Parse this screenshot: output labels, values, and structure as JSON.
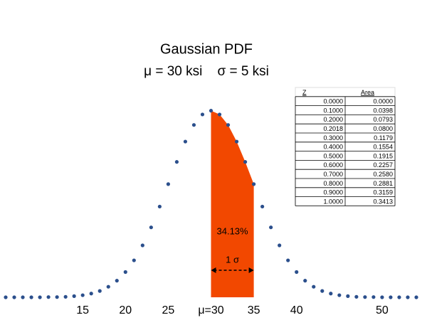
{
  "chart_data": {
    "type": "scatter",
    "title": "Gaussian PDF",
    "subtitle": "μ = 30 ksi    σ = 5 ksi",
    "x": [
      6,
      7,
      8,
      9,
      10,
      11,
      12,
      13,
      14,
      15,
      16,
      17,
      18,
      19,
      20,
      21,
      22,
      23,
      24,
      25,
      26,
      27,
      28,
      29,
      30,
      31,
      32,
      33,
      34,
      35,
      36,
      37,
      38,
      39,
      40,
      41,
      42,
      43,
      44,
      45,
      46,
      47,
      48,
      49,
      50,
      51,
      52,
      53,
      54
    ],
    "values": [
      0,
      0,
      0,
      0,
      0,
      0.0001,
      0.0001,
      0.0002,
      0.0005,
      0.0009,
      0.0016,
      0.0027,
      0.0045,
      0.0071,
      0.0108,
      0.0158,
      0.0222,
      0.0299,
      0.0388,
      0.0484,
      0.0579,
      0.0666,
      0.0737,
      0.0782,
      0.0798,
      0.0782,
      0.0737,
      0.0666,
      0.0579,
      0.0484,
      0.0388,
      0.0299,
      0.0222,
      0.0158,
      0.0108,
      0.0071,
      0.0045,
      0.0027,
      0.0016,
      0.0009,
      0.0005,
      0.0002,
      0.0001,
      0.0001,
      0,
      0,
      0,
      0,
      0
    ],
    "color": "#2b4f8c",
    "xlim": [
      6,
      54
    ],
    "ylim": [
      0,
      0.08
    ],
    "xticks": [
      15,
      20,
      25,
      {
        "value": 30,
        "label": "μ=30"
      },
      35,
      40,
      50
    ],
    "shade": [
      30,
      35
    ],
    "shade_color": "#f24800",
    "annotations": [
      "34.13%",
      "1 σ"
    ],
    "table": {
      "columns": [
        "Z",
        "Area"
      ],
      "rows": [
        [
          "0.0000",
          "0.0000"
        ],
        [
          "0.1000",
          "0.0398"
        ],
        [
          "0.2000",
          "0.0793"
        ],
        [
          "0.2018",
          "0.0800"
        ],
        [
          "0.3000",
          "0.1179"
        ],
        [
          "0.4000",
          "0.1554"
        ],
        [
          "0.5000",
          "0.1915"
        ],
        [
          "0.6000",
          "0.2257"
        ],
        [
          "0.7000",
          "0.2580"
        ],
        [
          "0.8000",
          "0.2881"
        ],
        [
          "0.9000",
          "0.3159"
        ],
        [
          "1.0000",
          "0.3413"
        ]
      ]
    }
  }
}
